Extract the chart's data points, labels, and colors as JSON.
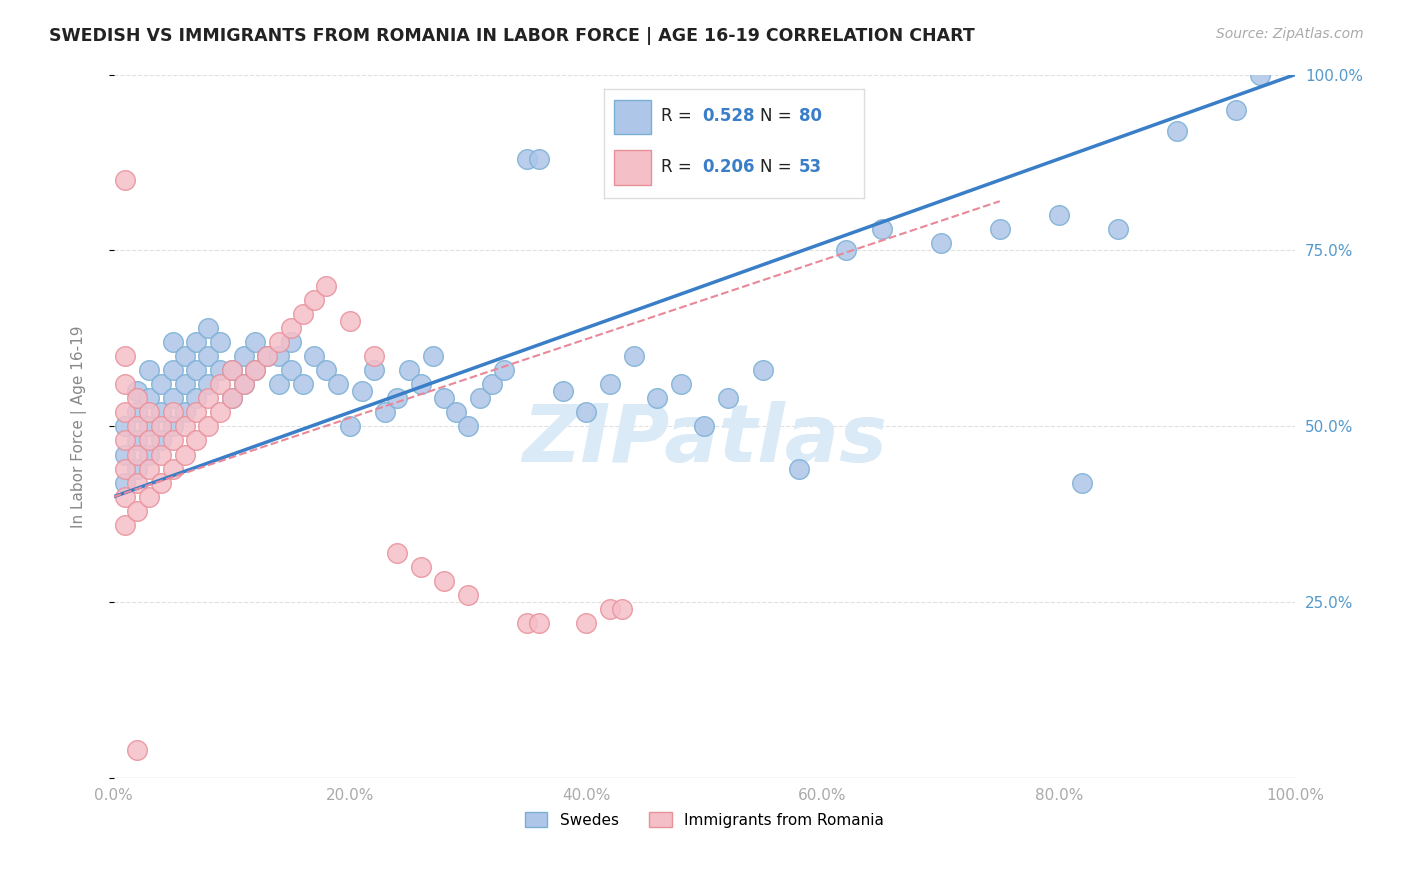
{
  "title": "SWEDISH VS IMMIGRANTS FROM ROMANIA IN LABOR FORCE | AGE 16-19 CORRELATION CHART",
  "source": "Source: ZipAtlas.com",
  "ylabel": "In Labor Force | Age 16-19",
  "xlim": [
    0.0,
    1.0
  ],
  "ylim": [
    0.0,
    1.0
  ],
  "swedes_R": 0.528,
  "swedes_N": 80,
  "romania_R": 0.206,
  "romania_N": 53,
  "swedes_color": "#aec6e8",
  "swedes_edge_color": "#7aafd4",
  "romania_color": "#f5bfc8",
  "romania_edge_color": "#e8909a",
  "trendline_swedes_color": "#3a7ec8",
  "trendline_romania_color": "#e88898",
  "watermark_color": "#daeaf7",
  "background_color": "#ffffff",
  "grid_color": "#e0e0e0",
  "title_color": "#222222",
  "ytick_right_color": "#5599cc",
  "legend_value_color": "#3a7ec8",
  "swedes_x": [
    0.01,
    0.01,
    0.01,
    0.02,
    0.02,
    0.02,
    0.02,
    0.03,
    0.03,
    0.03,
    0.03,
    0.04,
    0.04,
    0.04,
    0.05,
    0.05,
    0.05,
    0.05,
    0.06,
    0.06,
    0.06,
    0.07,
    0.07,
    0.07,
    0.08,
    0.08,
    0.08,
    0.09,
    0.09,
    0.1,
    0.1,
    0.11,
    0.11,
    0.12,
    0.12,
    0.13,
    0.14,
    0.14,
    0.15,
    0.15,
    0.16,
    0.17,
    0.18,
    0.19,
    0.2,
    0.21,
    0.22,
    0.23,
    0.24,
    0.25,
    0.26,
    0.27,
    0.28,
    0.29,
    0.3,
    0.31,
    0.32,
    0.33,
    0.35,
    0.36,
    0.38,
    0.4,
    0.42,
    0.44,
    0.46,
    0.48,
    0.5,
    0.52,
    0.55,
    0.58,
    0.62,
    0.65,
    0.7,
    0.75,
    0.8,
    0.82,
    0.85,
    0.9,
    0.95,
    0.97
  ],
  "swedes_y": [
    0.42,
    0.46,
    0.5,
    0.44,
    0.48,
    0.52,
    0.55,
    0.46,
    0.5,
    0.54,
    0.58,
    0.48,
    0.52,
    0.56,
    0.5,
    0.54,
    0.58,
    0.62,
    0.52,
    0.56,
    0.6,
    0.54,
    0.58,
    0.62,
    0.56,
    0.6,
    0.64,
    0.58,
    0.62,
    0.54,
    0.58,
    0.56,
    0.6,
    0.58,
    0.62,
    0.6,
    0.56,
    0.6,
    0.58,
    0.62,
    0.56,
    0.6,
    0.58,
    0.56,
    0.5,
    0.55,
    0.58,
    0.52,
    0.54,
    0.58,
    0.56,
    0.6,
    0.54,
    0.52,
    0.5,
    0.54,
    0.56,
    0.58,
    0.88,
    0.88,
    0.55,
    0.52,
    0.56,
    0.6,
    0.54,
    0.56,
    0.5,
    0.54,
    0.58,
    0.44,
    0.75,
    0.78,
    0.76,
    0.78,
    0.8,
    0.42,
    0.78,
    0.92,
    0.95,
    1.0
  ],
  "romania_x": [
    0.01,
    0.01,
    0.01,
    0.01,
    0.01,
    0.01,
    0.01,
    0.02,
    0.02,
    0.02,
    0.02,
    0.02,
    0.03,
    0.03,
    0.03,
    0.03,
    0.04,
    0.04,
    0.04,
    0.05,
    0.05,
    0.05,
    0.06,
    0.06,
    0.07,
    0.07,
    0.08,
    0.08,
    0.09,
    0.09,
    0.1,
    0.1,
    0.11,
    0.12,
    0.13,
    0.14,
    0.15,
    0.16,
    0.17,
    0.18,
    0.2,
    0.22,
    0.24,
    0.26,
    0.28,
    0.3,
    0.35,
    0.36,
    0.4,
    0.42,
    0.43,
    0.01,
    0.02
  ],
  "romania_y": [
    0.36,
    0.4,
    0.44,
    0.48,
    0.52,
    0.56,
    0.6,
    0.38,
    0.42,
    0.46,
    0.5,
    0.54,
    0.4,
    0.44,
    0.48,
    0.52,
    0.42,
    0.46,
    0.5,
    0.44,
    0.48,
    0.52,
    0.46,
    0.5,
    0.48,
    0.52,
    0.5,
    0.54,
    0.52,
    0.56,
    0.54,
    0.58,
    0.56,
    0.58,
    0.6,
    0.62,
    0.64,
    0.66,
    0.68,
    0.7,
    0.65,
    0.6,
    0.32,
    0.3,
    0.28,
    0.26,
    0.22,
    0.22,
    0.22,
    0.24,
    0.24,
    0.85,
    0.04
  ]
}
